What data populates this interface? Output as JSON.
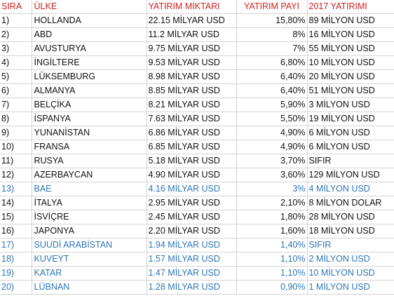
{
  "headers": {
    "sira": "SIRA",
    "ulke": "ÜLKE",
    "miktar": "YATIRIM MİKTARI",
    "pay": "YATIRIM PAYI",
    "y2017": "2017 YATIRIMI"
  },
  "colors": {
    "header_text": "#c9211e",
    "highlight_text": "#2e75b6",
    "body_text": "#111111",
    "gridline": "#d4d4d4"
  },
  "rows": [
    {
      "sira": "1)",
      "ulke": "HOLLANDA",
      "miktar": "22.15 MİLYAR USD",
      "pay": "15,80%",
      "y2017": "89 MİLYON USD",
      "highlight": false
    },
    {
      "sira": "2)",
      "ulke": "ABD",
      "miktar": "11.2 MİLYAR USD",
      "pay": "8%",
      "y2017": "16 MİLYON USD",
      "highlight": false
    },
    {
      "sira": "3)",
      "ulke": "AVUSTURYA",
      "miktar": "9.75 MİLYAR USD",
      "pay": "7%",
      "y2017": "55 MİLYON USD",
      "highlight": false
    },
    {
      "sira": "4)",
      "ulke": "İNGİLTERE",
      "miktar": "9.53 MİLYAR USD",
      "pay": "6,80%",
      "y2017": "10 MİLYON USD",
      "highlight": false
    },
    {
      "sira": "5)",
      "ulke": "LÜKSEMBURG",
      "miktar": "8.98 MİLYAR USD",
      "pay": "6,40%",
      "y2017": "20 MİLYON USD",
      "highlight": false
    },
    {
      "sira": "6)",
      "ulke": "ALMANYA",
      "miktar": "8.85 MİLYAR USD",
      "pay": "6,40%",
      "y2017": "51 MİLYON USD",
      "highlight": false
    },
    {
      "sira": "7)",
      "ulke": "BELÇİKA",
      "miktar": "8.21 MİLYAR USD",
      "pay": "5,90%",
      "y2017": "3 MİLYON USD",
      "highlight": false
    },
    {
      "sira": "8)",
      "ulke": "İSPANYA",
      "miktar": "7.63 MİLYAR USD",
      "pay": "5,50%",
      "y2017": "19 MİLYON USD",
      "highlight": false
    },
    {
      "sira": "9)",
      "ulke": "YUNANİSTAN",
      "miktar": "6.86 MİLYAR USD",
      "pay": "4,90%",
      "y2017": "6 MİLYON USD",
      "highlight": false
    },
    {
      "sira": "10)",
      "ulke": "FRANSA",
      "miktar": "6.85 MİLYAR USD",
      "pay": "4,90%",
      "y2017": "6 MİLYON USD",
      "highlight": false
    },
    {
      "sira": "11)",
      "ulke": "RUSYA",
      "miktar": "5.18 MİLYAR USD",
      "pay": "3,70%",
      "y2017": "SIFIR",
      "highlight": false
    },
    {
      "sira": "12)",
      "ulke": "AZERBAYCAN",
      "miktar": "4.90 MİLYAR USD",
      "pay": "3,60%",
      "y2017": "129 MİLYON USD",
      "highlight": false
    },
    {
      "sira": "13)",
      "ulke": "BAE",
      "miktar": "4.16 MİLYAR USD",
      "pay": "3%",
      "y2017": "4 MİLYON USD",
      "highlight": true
    },
    {
      "sira": "14)",
      "ulke": "İTALYA",
      "miktar": "2.95 MİLYAR USD",
      "pay": "2,10%",
      "y2017": "8 MİLYON DOLAR",
      "highlight": false
    },
    {
      "sira": "15)",
      "ulke": "İSVİÇRE",
      "miktar": "2.45 MİLYAR USD",
      "pay": "1,80%",
      "y2017": "28 MİLYON USD",
      "highlight": false
    },
    {
      "sira": "16)",
      "ulke": "JAPONYA",
      "miktar": "2.20 MİLYAR USD",
      "pay": "1,60%",
      "y2017": "18 MİLYON USD",
      "highlight": false
    },
    {
      "sira": "17)",
      "ulke": "SUUDİ ARABİSTAN",
      "miktar": "1.94 MİLYAR USD",
      "pay": "1,40%",
      "y2017": "SIFIR",
      "highlight": true
    },
    {
      "sira": "18)",
      "ulke": "KUVEYT",
      "miktar": "1.57 MİLYAR USD",
      "pay": "1,10%",
      "y2017": "2 MİLYON USD",
      "highlight": true
    },
    {
      "sira": "19)",
      "ulke": "KATAR",
      "miktar": "1.47 MİLYAR USD",
      "pay": "1,10%",
      "y2017": "10 MİLYON USD",
      "highlight": true
    },
    {
      "sira": "20)",
      "ulke": "LÜBNAN",
      "miktar": "1.28 MİLYAR USD",
      "pay": "0,90%",
      "y2017": "1 MİLYON USD",
      "highlight": true
    }
  ]
}
